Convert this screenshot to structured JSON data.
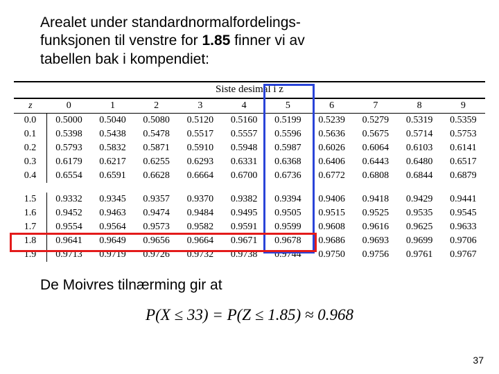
{
  "intro": {
    "line1": "Arealet under standardnormalfordelings-",
    "line2_a": "funksjonen til venstre for ",
    "line2_b": "1.85",
    "line2_c": " finner vi av",
    "line3": "tabellen bak i kompendiet:"
  },
  "table": {
    "title": "Siste desimal i z",
    "z_label": "z",
    "columns": [
      "0",
      "1",
      "2",
      "3",
      "4",
      "5",
      "6",
      "7",
      "8",
      "9"
    ],
    "rows_group1": [
      {
        "z": "0.0",
        "v": [
          "0.5000",
          "0.5040",
          "0.5080",
          "0.5120",
          "0.5160",
          "0.5199",
          "0.5239",
          "0.5279",
          "0.5319",
          "0.5359"
        ]
      },
      {
        "z": "0.1",
        "v": [
          "0.5398",
          "0.5438",
          "0.5478",
          "0.5517",
          "0.5557",
          "0.5596",
          "0.5636",
          "0.5675",
          "0.5714",
          "0.5753"
        ]
      },
      {
        "z": "0.2",
        "v": [
          "0.5793",
          "0.5832",
          "0.5871",
          "0.5910",
          "0.5948",
          "0.5987",
          "0.6026",
          "0.6064",
          "0.6103",
          "0.6141"
        ]
      },
      {
        "z": "0.3",
        "v": [
          "0.6179",
          "0.6217",
          "0.6255",
          "0.6293",
          "0.6331",
          "0.6368",
          "0.6406",
          "0.6443",
          "0.6480",
          "0.6517"
        ]
      },
      {
        "z": "0.4",
        "v": [
          "0.6554",
          "0.6591",
          "0.6628",
          "0.6664",
          "0.6700",
          "0.6736",
          "0.6772",
          "0.6808",
          "0.6844",
          "0.6879"
        ]
      }
    ],
    "rows_group2": [
      {
        "z": "1.5",
        "v": [
          "0.9332",
          "0.9345",
          "0.9357",
          "0.9370",
          "0.9382",
          "0.9394",
          "0.9406",
          "0.9418",
          "0.9429",
          "0.9441"
        ]
      },
      {
        "z": "1.6",
        "v": [
          "0.9452",
          "0.9463",
          "0.9474",
          "0.9484",
          "0.9495",
          "0.9505",
          "0.9515",
          "0.9525",
          "0.9535",
          "0.9545"
        ]
      },
      {
        "z": "1.7",
        "v": [
          "0.9554",
          "0.9564",
          "0.9573",
          "0.9582",
          "0.9591",
          "0.9599",
          "0.9608",
          "0.9616",
          "0.9625",
          "0.9633"
        ]
      },
      {
        "z": "1.8",
        "v": [
          "0.9641",
          "0.9649",
          "0.9656",
          "0.9664",
          "0.9671",
          "0.9678",
          "0.9686",
          "0.9693",
          "0.9699",
          "0.9706"
        ]
      },
      {
        "z": "1.9",
        "v": [
          "0.9713",
          "0.9719",
          "0.9726",
          "0.9732",
          "0.9738",
          "0.9744",
          "0.9750",
          "0.9756",
          "0.9761",
          "0.9767"
        ]
      }
    ],
    "highlight_col_index": 5,
    "highlight_row_z": "1.8",
    "colors": {
      "blue": "#2a44d8",
      "red": "#e31b1b"
    }
  },
  "conclusion": "De Moivres tilnærming gir at",
  "formula": {
    "lhs": "P(X ≤ 33) = P(Z ≤ 1.85) ≈ 0.968"
  },
  "page_number": "37"
}
